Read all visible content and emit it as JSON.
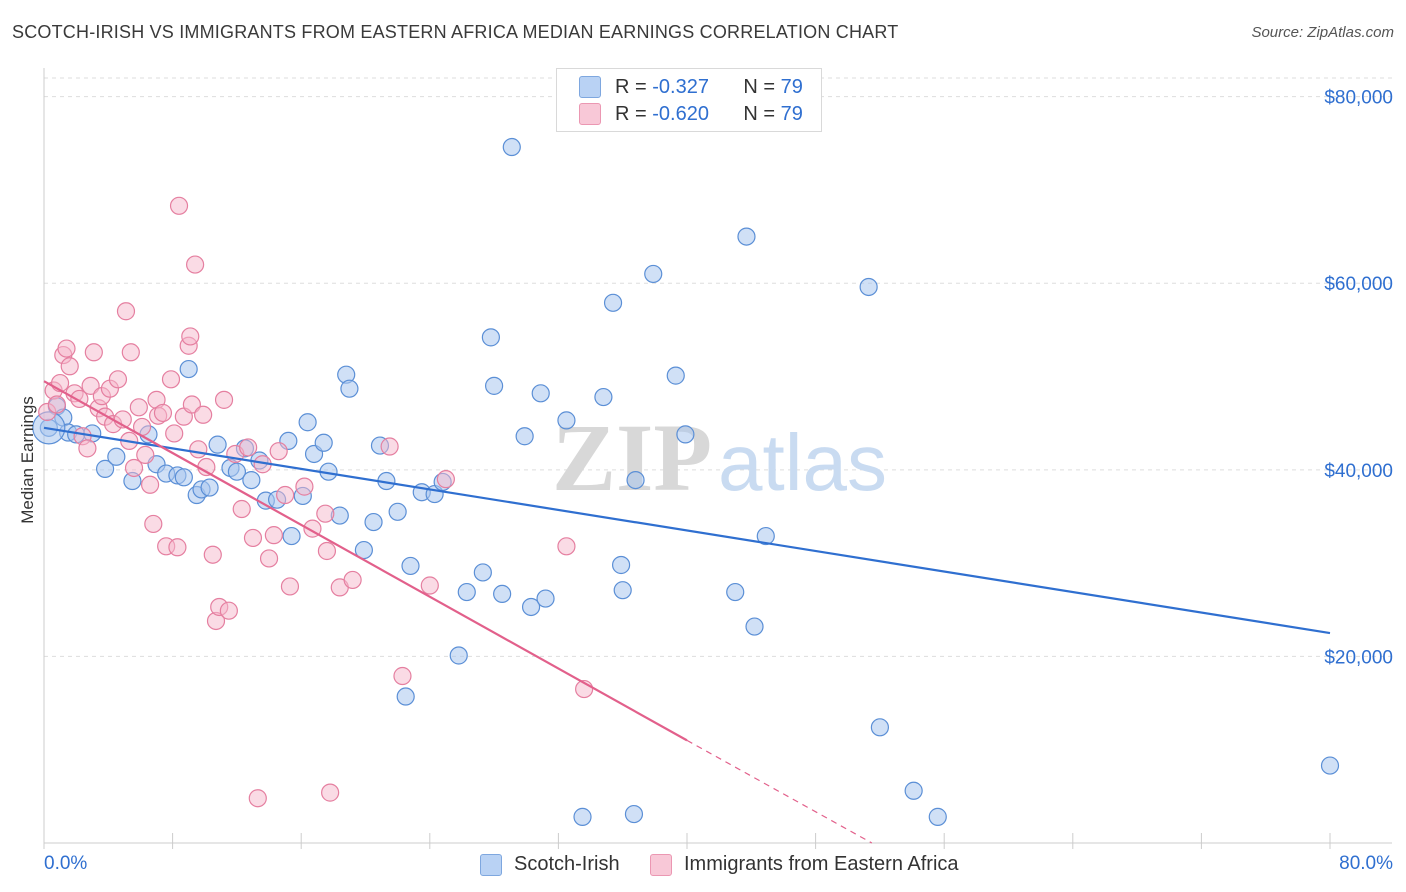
{
  "title": "SCOTCH-IRISH VS IMMIGRANTS FROM EASTERN AFRICA MEDIAN EARNINGS CORRELATION CHART",
  "source": "Source: ZipAtlas.com",
  "watermark": {
    "zip": "ZIP",
    "atlas": "atlas"
  },
  "legend": {
    "rows": [
      {
        "r_label": "R =",
        "r_value": "-0.327",
        "n_label": "N =",
        "n_value": "79"
      },
      {
        "r_label": "R =",
        "r_value": "-0.620",
        "n_label": "N =",
        "n_value": "79"
      }
    ],
    "bottom": [
      "Scotch-Irish",
      "Immigrants from Eastern Africa"
    ]
  },
  "colors": {
    "blue_fill": "#a9c7ef",
    "blue_stroke": "#5b8fd6",
    "blue_line": "#2f6fd0",
    "pink_fill": "#f5b8cb",
    "pink_stroke": "#e57fa0",
    "pink_line": "#e2608b",
    "axis_text": "#2f6fd0",
    "grid": "#dddddd"
  },
  "chart_data": {
    "type": "scatter",
    "xlabel": "",
    "ylabel": "Median Earnings",
    "xlim": [
      0,
      80
    ],
    "ylim": [
      0,
      82000
    ],
    "x_tick_labels": [
      "0.0%",
      "80.0%"
    ],
    "y_ticks": [
      20000,
      40000,
      60000,
      80000
    ],
    "y_tick_labels": [
      "$20,000",
      "$40,000",
      "$60,000",
      "$80,000"
    ],
    "grid": true,
    "series": [
      {
        "name": "Scotch-Irish",
        "trend": {
          "x": [
            0,
            80
          ],
          "y": [
            44500,
            22500
          ]
        },
        "points": [
          [
            0.3,
            44500
          ],
          [
            0.8,
            46800
          ],
          [
            1.2,
            45600
          ],
          [
            1.5,
            44000
          ],
          [
            2.0,
            43800
          ],
          [
            3.0,
            43900
          ],
          [
            3.8,
            40100
          ],
          [
            4.5,
            41400
          ],
          [
            5.5,
            38800
          ],
          [
            6.5,
            43800
          ],
          [
            7.0,
            40600
          ],
          [
            7.6,
            39600
          ],
          [
            8.3,
            39400
          ],
          [
            8.7,
            39200
          ],
          [
            9.0,
            50800
          ],
          [
            9.5,
            37300
          ],
          [
            9.8,
            37900
          ],
          [
            10.3,
            38100
          ],
          [
            10.8,
            42700
          ],
          [
            11.6,
            40200
          ],
          [
            12.0,
            39800
          ],
          [
            12.5,
            42300
          ],
          [
            12.9,
            38900
          ],
          [
            13.4,
            41000
          ],
          [
            13.8,
            36700
          ],
          [
            14.5,
            36800
          ],
          [
            15.2,
            43100
          ],
          [
            15.4,
            32900
          ],
          [
            16.1,
            37200
          ],
          [
            16.4,
            45100
          ],
          [
            16.8,
            41700
          ],
          [
            17.4,
            42900
          ],
          [
            17.7,
            39800
          ],
          [
            18.4,
            35100
          ],
          [
            18.8,
            50200
          ],
          [
            19.0,
            48700
          ],
          [
            19.9,
            31400
          ],
          [
            20.5,
            34400
          ],
          [
            20.9,
            42600
          ],
          [
            21.3,
            38800
          ],
          [
            22.0,
            35500
          ],
          [
            22.5,
            15700
          ],
          [
            22.8,
            29700
          ],
          [
            23.5,
            37600
          ],
          [
            24.3,
            37400
          ],
          [
            24.8,
            38700
          ],
          [
            25.8,
            20100
          ],
          [
            26.3,
            26900
          ],
          [
            27.3,
            29000
          ],
          [
            27.8,
            54200
          ],
          [
            28.0,
            49000
          ],
          [
            28.5,
            26700
          ],
          [
            29.1,
            74600
          ],
          [
            29.9,
            43600
          ],
          [
            30.3,
            25300
          ],
          [
            30.9,
            48200
          ],
          [
            31.2,
            26200
          ],
          [
            32.5,
            45300
          ],
          [
            33.5,
            2800
          ],
          [
            34.8,
            47800
          ],
          [
            35.4,
            57900
          ],
          [
            35.9,
            29800
          ],
          [
            36.0,
            27100
          ],
          [
            36.7,
            3100
          ],
          [
            36.8,
            38900
          ],
          [
            37.9,
            61000
          ],
          [
            39.3,
            50100
          ],
          [
            39.9,
            43800
          ],
          [
            43.0,
            26900
          ],
          [
            43.7,
            65000
          ],
          [
            44.2,
            23200
          ],
          [
            44.9,
            32900
          ],
          [
            51.3,
            59600
          ],
          [
            52.0,
            12400
          ],
          [
            54.1,
            5600
          ],
          [
            55.6,
            2800
          ],
          [
            80.0,
            8300
          ]
        ]
      },
      {
        "name": "Immigrants from Eastern Africa",
        "trend": {
          "x": [
            0,
            40
          ],
          "y": [
            49500,
            11000
          ]
        },
        "trend_dashed": {
          "x": [
            40,
            51.5
          ],
          "y": [
            11000,
            0
          ]
        },
        "points": [
          [
            0.2,
            46200
          ],
          [
            0.6,
            48500
          ],
          [
            0.8,
            47000
          ],
          [
            1.0,
            49300
          ],
          [
            1.2,
            52300
          ],
          [
            1.4,
            53000
          ],
          [
            1.6,
            51100
          ],
          [
            1.9,
            48200
          ],
          [
            2.2,
            47600
          ],
          [
            2.4,
            43600
          ],
          [
            2.7,
            42300
          ],
          [
            2.9,
            49000
          ],
          [
            3.1,
            52600
          ],
          [
            3.4,
            46600
          ],
          [
            3.6,
            47900
          ],
          [
            3.8,
            45700
          ],
          [
            4.1,
            48700
          ],
          [
            4.3,
            44900
          ],
          [
            4.6,
            49700
          ],
          [
            4.9,
            45400
          ],
          [
            5.1,
            57000
          ],
          [
            5.3,
            43100
          ],
          [
            5.4,
            52600
          ],
          [
            5.6,
            40200
          ],
          [
            5.9,
            46700
          ],
          [
            6.1,
            44600
          ],
          [
            6.3,
            41600
          ],
          [
            6.6,
            38400
          ],
          [
            6.8,
            34200
          ],
          [
            7.0,
            47500
          ],
          [
            7.1,
            45800
          ],
          [
            7.4,
            46100
          ],
          [
            7.6,
            31800
          ],
          [
            7.9,
            49700
          ],
          [
            8.1,
            43900
          ],
          [
            8.3,
            31700
          ],
          [
            8.4,
            68300
          ],
          [
            8.7,
            45700
          ],
          [
            9.0,
            53300
          ],
          [
            9.1,
            54300
          ],
          [
            9.2,
            47000
          ],
          [
            9.4,
            62000
          ],
          [
            9.6,
            42200
          ],
          [
            9.9,
            45900
          ],
          [
            10.1,
            40300
          ],
          [
            10.5,
            30900
          ],
          [
            10.7,
            23800
          ],
          [
            10.9,
            25300
          ],
          [
            11.2,
            47500
          ],
          [
            11.5,
            24900
          ],
          [
            11.9,
            41700
          ],
          [
            12.3,
            35800
          ],
          [
            12.7,
            42400
          ],
          [
            13.0,
            32700
          ],
          [
            13.3,
            4800
          ],
          [
            13.6,
            40600
          ],
          [
            14.0,
            30500
          ],
          [
            14.3,
            33000
          ],
          [
            14.6,
            42000
          ],
          [
            15.0,
            37300
          ],
          [
            15.3,
            27500
          ],
          [
            16.2,
            38200
          ],
          [
            16.7,
            33700
          ],
          [
            17.5,
            35300
          ],
          [
            17.6,
            31300
          ],
          [
            17.8,
            5400
          ],
          [
            18.4,
            27400
          ],
          [
            19.2,
            28200
          ],
          [
            21.5,
            42500
          ],
          [
            22.3,
            17900
          ],
          [
            24.0,
            27600
          ],
          [
            25.0,
            39000
          ],
          [
            32.5,
            31800
          ],
          [
            33.6,
            16500
          ]
        ]
      }
    ]
  }
}
